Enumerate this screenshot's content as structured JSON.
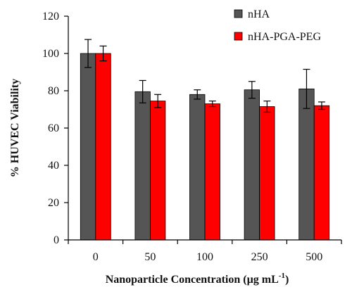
{
  "chart_data": {
    "type": "bar",
    "title": "",
    "xlabel": "Nanoparticle Concentration (µg mL",
    "xlabel_sup": "-1",
    "xlabel_close": ")",
    "ylabel": "% HUVEC Viability",
    "categories": [
      "0",
      "50",
      "100",
      "250",
      "500"
    ],
    "ylim": [
      0,
      120
    ],
    "yticks": [
      0,
      20,
      40,
      60,
      80,
      100,
      120
    ],
    "grid": false,
    "legend_position": "top-right",
    "series": [
      {
        "name": "nHA",
        "color": "#555555",
        "values": [
          100,
          79.5,
          78,
          80.5,
          81
        ],
        "errors": [
          7.5,
          6,
          2.5,
          4.5,
          10.5
        ]
      },
      {
        "name": "nHA-PGA-PEG",
        "color": "#ff0000",
        "values": [
          100,
          74.5,
          73,
          71.5,
          72
        ],
        "errors": [
          4,
          3.5,
          1.5,
          3,
          2
        ]
      }
    ]
  }
}
